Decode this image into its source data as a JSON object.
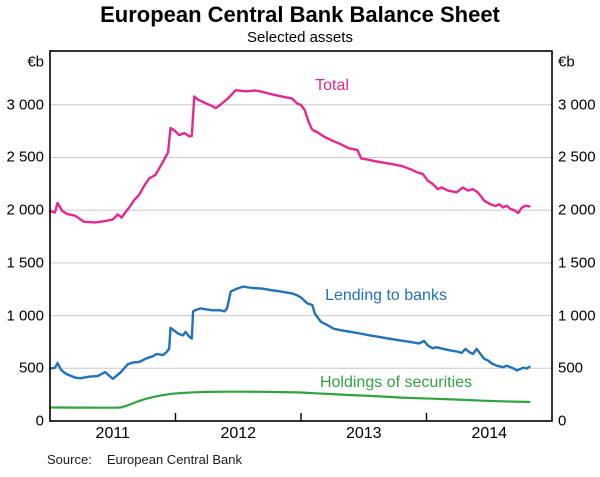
{
  "title": "European Central Bank Balance Sheet",
  "subtitle": "Selected assets",
  "source": {
    "label": "Source:",
    "text": "European Central Bank"
  },
  "chart_data": {
    "type": "line",
    "title": "European Central Bank Balance Sheet",
    "subtitle": "Selected assets",
    "unit": "€b",
    "frame_color": "#000000",
    "grid_color": "#c9c9c9",
    "grid": true,
    "legend_position": "inline-labels",
    "x_axis": {
      "range": [
        2011.0,
        2015.0
      ],
      "tick_years": [
        2012,
        2013,
        2014
      ],
      "year_labels": [
        {
          "label": "2011",
          "pos": 2011.5
        },
        {
          "label": "2012",
          "pos": 2012.5
        },
        {
          "label": "2013",
          "pos": 2013.5
        },
        {
          "label": "2014",
          "pos": 2014.5
        }
      ]
    },
    "y_axis": {
      "range": [
        0,
        3510
      ],
      "gridline_values": [
        500,
        1000,
        1500,
        2000,
        2500,
        3000
      ],
      "tick_labels": [
        {
          "value": 0,
          "label": "0"
        },
        {
          "value": 500,
          "label": "500"
        },
        {
          "value": 1000,
          "label": "1 000"
        },
        {
          "value": 1500,
          "label": "1 500"
        },
        {
          "value": 2000,
          "label": "2 000"
        },
        {
          "value": 2500,
          "label": "2 500"
        },
        {
          "value": 3000,
          "label": "3 000"
        }
      ],
      "sides": "both"
    },
    "series": [
      {
        "name": "Total",
        "color": "#e6278f",
        "data": [
          [
            2011.0,
            1990
          ],
          [
            2011.04,
            1978
          ],
          [
            2011.06,
            2068
          ],
          [
            2011.1,
            1990
          ],
          [
            2011.14,
            1962
          ],
          [
            2011.2,
            1948
          ],
          [
            2011.27,
            1890
          ],
          [
            2011.36,
            1884
          ],
          [
            2011.44,
            1896
          ],
          [
            2011.5,
            1912
          ],
          [
            2011.54,
            1960
          ],
          [
            2011.57,
            1930
          ],
          [
            2011.61,
            1995
          ],
          [
            2011.64,
            2040
          ],
          [
            2011.67,
            2095
          ],
          [
            2011.71,
            2145
          ],
          [
            2011.75,
            2230
          ],
          [
            2011.79,
            2300
          ],
          [
            2011.84,
            2335
          ],
          [
            2011.88,
            2415
          ],
          [
            2011.92,
            2505
          ],
          [
            2011.94,
            2545
          ],
          [
            2011.96,
            2780
          ],
          [
            2011.99,
            2758
          ],
          [
            2012.03,
            2712
          ],
          [
            2012.07,
            2732
          ],
          [
            2012.11,
            2700
          ],
          [
            2012.13,
            2705
          ],
          [
            2012.15,
            3078
          ],
          [
            2012.18,
            3048
          ],
          [
            2012.23,
            3020
          ],
          [
            2012.28,
            2995
          ],
          [
            2012.32,
            2968
          ],
          [
            2012.36,
            3002
          ],
          [
            2012.42,
            3062
          ],
          [
            2012.48,
            3138
          ],
          [
            2012.56,
            3128
          ],
          [
            2012.64,
            3135
          ],
          [
            2012.7,
            3120
          ],
          [
            2012.77,
            3098
          ],
          [
            2012.83,
            3082
          ],
          [
            2012.89,
            3068
          ],
          [
            2012.93,
            3058
          ],
          [
            2012.97,
            3012
          ],
          [
            2013.0,
            2998
          ],
          [
            2013.03,
            2948
          ],
          [
            2013.06,
            2840
          ],
          [
            2013.09,
            2762
          ],
          [
            2013.13,
            2740
          ],
          [
            2013.18,
            2700
          ],
          [
            2013.24,
            2665
          ],
          [
            2013.31,
            2630
          ],
          [
            2013.38,
            2588
          ],
          [
            2013.45,
            2570
          ],
          [
            2013.48,
            2490
          ],
          [
            2013.53,
            2480
          ],
          [
            2013.59,
            2465
          ],
          [
            2013.66,
            2450
          ],
          [
            2013.73,
            2436
          ],
          [
            2013.8,
            2420
          ],
          [
            2013.87,
            2390
          ],
          [
            2013.93,
            2356
          ],
          [
            2013.97,
            2345
          ],
          [
            2014.01,
            2280
          ],
          [
            2014.05,
            2248
          ],
          [
            2014.09,
            2200
          ],
          [
            2014.12,
            2216
          ],
          [
            2014.17,
            2186
          ],
          [
            2014.24,
            2170
          ],
          [
            2014.29,
            2215
          ],
          [
            2014.33,
            2186
          ],
          [
            2014.37,
            2200
          ],
          [
            2014.41,
            2168
          ],
          [
            2014.46,
            2090
          ],
          [
            2014.51,
            2056
          ],
          [
            2014.55,
            2040
          ],
          [
            2014.58,
            2056
          ],
          [
            2014.61,
            2026
          ],
          [
            2014.64,
            2042
          ],
          [
            2014.67,
            2010
          ],
          [
            2014.7,
            2000
          ],
          [
            2014.73,
            1972
          ],
          [
            2014.76,
            2024
          ],
          [
            2014.79,
            2042
          ],
          [
            2014.82,
            2036
          ]
        ]
      },
      {
        "name": "Lending to banks",
        "color": "#2171bb",
        "data": [
          [
            2011.0,
            497
          ],
          [
            2011.04,
            505
          ],
          [
            2011.06,
            550
          ],
          [
            2011.09,
            482
          ],
          [
            2011.13,
            446
          ],
          [
            2011.2,
            412
          ],
          [
            2011.24,
            405
          ],
          [
            2011.31,
            420
          ],
          [
            2011.38,
            426
          ],
          [
            2011.44,
            464
          ],
          [
            2011.5,
            400
          ],
          [
            2011.56,
            458
          ],
          [
            2011.62,
            538
          ],
          [
            2011.66,
            555
          ],
          [
            2011.71,
            560
          ],
          [
            2011.77,
            595
          ],
          [
            2011.82,
            615
          ],
          [
            2011.85,
            636
          ],
          [
            2011.9,
            625
          ],
          [
            2011.93,
            655
          ],
          [
            2011.95,
            688
          ],
          [
            2011.96,
            884
          ],
          [
            2011.99,
            858
          ],
          [
            2012.02,
            830
          ],
          [
            2012.06,
            812
          ],
          [
            2012.08,
            845
          ],
          [
            2012.11,
            800
          ],
          [
            2012.13,
            782
          ],
          [
            2012.14,
            1040
          ],
          [
            2012.16,
            1052
          ],
          [
            2012.2,
            1068
          ],
          [
            2012.25,
            1058
          ],
          [
            2012.3,
            1050
          ],
          [
            2012.36,
            1050
          ],
          [
            2012.39,
            1040
          ],
          [
            2012.41,
            1066
          ],
          [
            2012.44,
            1228
          ],
          [
            2012.49,
            1256
          ],
          [
            2012.54,
            1275
          ],
          [
            2012.61,
            1262
          ],
          [
            2012.69,
            1256
          ],
          [
            2012.77,
            1240
          ],
          [
            2012.83,
            1230
          ],
          [
            2012.88,
            1220
          ],
          [
            2012.93,
            1210
          ],
          [
            2012.97,
            1192
          ],
          [
            2013.0,
            1172
          ],
          [
            2013.05,
            1116
          ],
          [
            2013.09,
            1100
          ],
          [
            2013.11,
            1020
          ],
          [
            2013.14,
            970
          ],
          [
            2013.16,
            940
          ],
          [
            2013.21,
            910
          ],
          [
            2013.26,
            876
          ],
          [
            2013.32,
            860
          ],
          [
            2013.4,
            845
          ],
          [
            2013.47,
            830
          ],
          [
            2013.55,
            812
          ],
          [
            2013.63,
            796
          ],
          [
            2013.71,
            780
          ],
          [
            2013.79,
            765
          ],
          [
            2013.87,
            750
          ],
          [
            2013.94,
            735
          ],
          [
            2013.98,
            760
          ],
          [
            2014.01,
            716
          ],
          [
            2014.05,
            690
          ],
          [
            2014.08,
            700
          ],
          [
            2014.13,
            685
          ],
          [
            2014.19,
            670
          ],
          [
            2014.24,
            660
          ],
          [
            2014.28,
            646
          ],
          [
            2014.31,
            684
          ],
          [
            2014.34,
            654
          ],
          [
            2014.37,
            636
          ],
          [
            2014.4,
            684
          ],
          [
            2014.43,
            635
          ],
          [
            2014.46,
            590
          ],
          [
            2014.49,
            574
          ],
          [
            2014.52,
            545
          ],
          [
            2014.56,
            525
          ],
          [
            2014.61,
            510
          ],
          [
            2014.64,
            525
          ],
          [
            2014.69,
            500
          ],
          [
            2014.72,
            480
          ],
          [
            2014.75,
            494
          ],
          [
            2014.77,
            506
          ],
          [
            2014.8,
            498
          ],
          [
            2014.82,
            514
          ]
        ]
      },
      {
        "name": "Holdings of securities",
        "color": "#2fa342",
        "data": [
          [
            2011.0,
            128
          ],
          [
            2011.1,
            128
          ],
          [
            2011.2,
            127
          ],
          [
            2011.3,
            127
          ],
          [
            2011.4,
            126
          ],
          [
            2011.5,
            126
          ],
          [
            2011.56,
            128
          ],
          [
            2011.6,
            140
          ],
          [
            2011.65,
            162
          ],
          [
            2011.7,
            186
          ],
          [
            2011.76,
            210
          ],
          [
            2011.83,
            230
          ],
          [
            2011.9,
            246
          ],
          [
            2011.97,
            258
          ],
          [
            2012.05,
            266
          ],
          [
            2012.15,
            272
          ],
          [
            2012.25,
            276
          ],
          [
            2012.4,
            278
          ],
          [
            2012.55,
            278
          ],
          [
            2012.7,
            277
          ],
          [
            2012.85,
            274
          ],
          [
            2013.0,
            270
          ],
          [
            2013.1,
            264
          ],
          [
            2013.25,
            255
          ],
          [
            2013.4,
            246
          ],
          [
            2013.55,
            238
          ],
          [
            2013.7,
            229
          ],
          [
            2013.8,
            222
          ],
          [
            2013.95,
            215
          ],
          [
            2014.05,
            212
          ],
          [
            2014.2,
            205
          ],
          [
            2014.32,
            199
          ],
          [
            2014.45,
            193
          ],
          [
            2014.6,
            187
          ],
          [
            2014.7,
            184
          ],
          [
            2014.82,
            180
          ]
        ]
      }
    ]
  }
}
